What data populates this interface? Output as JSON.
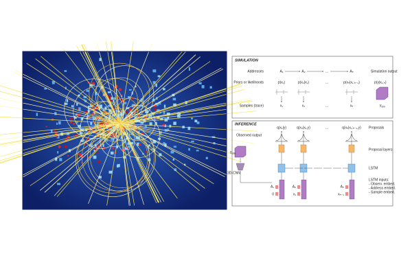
{
  "simulation": {
    "title": "SIMULATION",
    "row_labels": [
      "Addresses",
      "Priors or likelihoods",
      "Samples (trace)"
    ],
    "addresses": [
      "A₁",
      "A₂",
      "…",
      "Aₙ"
    ],
    "output_label": "Simulation output",
    "priors": [
      "p(x₁)",
      "p(x₂|x₁)",
      "…",
      "p(xₙ|x₁:ₙ₋₁)"
    ],
    "likelihood": "p(y|x₁:ₙ)",
    "samples": [
      "x₁",
      "x₂",
      "…",
      "xₙ"
    ],
    "output": {
      "symbol": "y",
      "subscript": "sim"
    }
  },
  "inference": {
    "title": "INFERENCE",
    "proposals": [
      "q(x₁|y)",
      "q(x₂|x₁,y)",
      "…",
      "q(xₙ|x₁:ₙ₋₁,y)"
    ],
    "right_labels": {
      "proposals": "Proposals",
      "proposal_layers": "Proposal layers",
      "lstm": "LSTM"
    },
    "lstm_inputs": [
      "LSTM inputs:",
      "- Observ. embed.",
      "- Address embed.",
      "- Sample embed."
    ],
    "observed_label": "Observed output",
    "observed": {
      "symbol": "y",
      "subscript": "obs"
    },
    "cnn": "3D-CNN",
    "inputs": [
      [
        "A₁",
        "0"
      ],
      [
        "A₂",
        "x₁"
      ],
      [
        "Aₙ",
        "xₙ₋₁"
      ]
    ]
  }
}
